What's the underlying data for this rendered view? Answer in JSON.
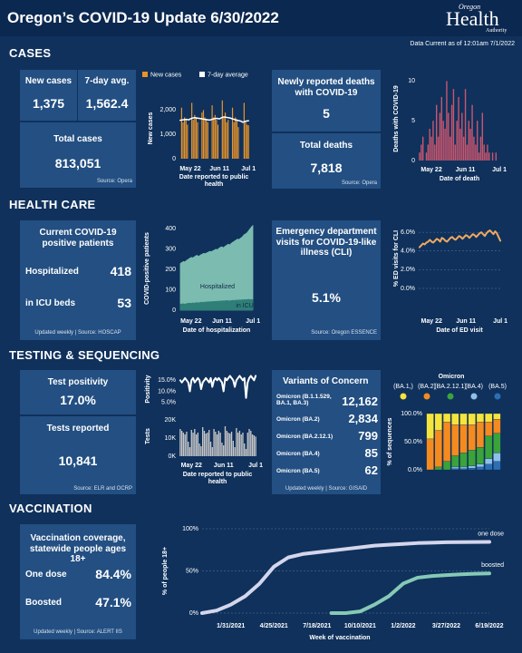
{
  "header": {
    "title": "Oregon’s COVID-19 Update 6/30/2022",
    "logo": {
      "top": "Oregon",
      "main": "Health",
      "bottom": "Authority"
    },
    "data_current": "Data Current as of 12:01am 7/1/2022"
  },
  "sections": [
    {
      "title": "CASES",
      "tiles": [
        {
          "label": "New cases",
          "value": "1,375"
        },
        {
          "label": "7-day avg.",
          "value": "1,562.4"
        },
        {
          "label": "Total cases",
          "value": "813,051",
          "source": "Source: Opera"
        },
        {
          "label": "Newly reported deaths with COVID-19",
          "value": "5"
        },
        {
          "label": "Total deaths",
          "value": "7,818",
          "source": "Source: Opera"
        }
      ]
    },
    {
      "title": "HEALTH CARE",
      "tiles": [
        {
          "label": "Current COVID-19 positive patients",
          "rows": [
            {
              "label": "Hospitalized",
              "value": "418"
            },
            {
              "label": "in ICU beds",
              "value": "53"
            }
          ],
          "source": "Updated weekly | Source: HOSCAP"
        },
        {
          "label": "Emergency department visits for COVID-19-like illness (CLI)",
          "value": "5.1%",
          "source": "Source: Oregon ESSENCE"
        }
      ]
    },
    {
      "title": "TESTING & SEQUENCING",
      "tiles": [
        {
          "label": "Test positivity",
          "value": "17.0%"
        },
        {
          "label": "Tests reported",
          "value": "10,841",
          "source": "Source: ELR and OCRP"
        }
      ],
      "variants": {
        "title": "Variants of Concern",
        "rows": [
          {
            "name": "Omicron (B.1.1.529, BA.1, BA.3)",
            "value": "12,162"
          },
          {
            "name": "Omicron (BA.2)",
            "value": "2,834"
          },
          {
            "name": "Omicron (BA.2.12.1)",
            "value": "799"
          },
          {
            "name": "Omicron (BA.4)",
            "value": "85"
          },
          {
            "name": "Omicron (BA.5)",
            "value": "62"
          }
        ],
        "source": "Updated weekly | Source: GISAID"
      }
    },
    {
      "title": "VACCINATION",
      "tiles": [
        {
          "label": "Vaccination coverage, statewide people ages 18+",
          "rows": [
            {
              "label": "One dose",
              "value": "84.4%"
            },
            {
              "label": "Boosted",
              "value": "47.1%"
            }
          ],
          "source": "Updated weekly | Source: ALERT IIS"
        }
      ]
    }
  ],
  "chart_data": [
    {
      "type": "combo",
      "legend": "top",
      "categories": [
        null,
        null,
        null,
        null,
        null,
        null,
        null,
        "May 22",
        null,
        null,
        null,
        null,
        null,
        null,
        null,
        null,
        null,
        null,
        null,
        null,
        null,
        null,
        null,
        null,
        null,
        null,
        null,
        "Jun 11",
        null,
        null,
        null,
        null,
        null,
        null,
        null,
        null,
        null,
        null,
        null,
        null,
        null,
        null,
        null,
        null,
        null,
        null,
        null,
        "Jul 1"
      ],
      "series": [
        {
          "name": "New cases",
          "type": "bar",
          "color": "#e8932a",
          "values": [
            0,
            2100,
            1500,
            1700,
            1600,
            1400,
            0,
            0,
            2300,
            1600,
            1800,
            1700,
            1500,
            0,
            0,
            1900,
            2000,
            1700,
            1600,
            1500,
            0,
            0,
            2200,
            1700,
            1800,
            1600,
            1400,
            0,
            0,
            2400,
            1700,
            1900,
            1500,
            1600,
            0,
            0,
            2100,
            1500,
            1700,
            1600,
            1300,
            0,
            0,
            0,
            2300,
            1500,
            1400,
            1375
          ]
        },
        {
          "name": "7-day average",
          "type": "line",
          "color": "#ffffff",
          "values": [
            1580,
            1590,
            1600,
            1610,
            1620,
            1610,
            1600,
            1640,
            1660,
            1680,
            1690,
            1680,
            1670,
            1660,
            1650,
            1640,
            1630,
            1620,
            1610,
            1600,
            1590,
            1600,
            1620,
            1640,
            1650,
            1660,
            1650,
            1640,
            1670,
            1700,
            1720,
            1710,
            1700,
            1690,
            1680,
            1660,
            1640,
            1620,
            1600,
            1590,
            1570,
            1560,
            1540,
            1500,
            1520,
            1540,
            1555,
            1562.4
          ]
        }
      ],
      "ylabel": "New cases",
      "xlabel": "Date reported to public health",
      "ylim": [
        0,
        2500
      ],
      "yticks": [
        0,
        {
          "value": 1000,
          "label": "1,000"
        },
        {
          "value": 2000,
          "label": "2,000"
        }
      ]
    },
    {
      "type": "bar",
      "categories": [
        null,
        null,
        null,
        null,
        null,
        null,
        null,
        "May 22",
        null,
        null,
        null,
        null,
        null,
        null,
        null,
        null,
        null,
        null,
        null,
        null,
        null,
        null,
        null,
        null,
        null,
        null,
        null,
        "Jun 11",
        null,
        null,
        null,
        null,
        null,
        null,
        null,
        null,
        null,
        null,
        null,
        null,
        null,
        null,
        null,
        null,
        null,
        null,
        null,
        "Jul 1"
      ],
      "values": [
        1,
        2,
        3,
        0,
        1,
        2,
        4,
        3,
        5,
        2,
        7,
        3,
        6,
        8,
        5,
        4,
        10,
        6,
        3,
        7,
        9,
        2,
        5,
        8,
        4,
        6,
        3,
        9,
        2,
        5,
        4,
        7,
        3,
        2,
        5,
        1,
        3,
        6,
        2,
        1,
        2,
        1,
        0,
        1,
        0,
        1,
        0,
        0
      ],
      "color": "#c9566e",
      "ylabel": "Deaths with COVID-19",
      "xlabel": "Date of death",
      "ylim": [
        0,
        10.5
      ],
      "yticks": [
        0,
        5,
        10
      ]
    },
    {
      "type": "area",
      "legend": "inline",
      "categories": [
        null,
        null,
        null,
        null,
        null,
        null,
        null,
        "May 22",
        null,
        null,
        null,
        null,
        null,
        null,
        null,
        null,
        null,
        null,
        null,
        null,
        null,
        null,
        null,
        null,
        null,
        null,
        null,
        "Jun 11",
        null,
        null,
        null,
        null,
        null,
        null,
        null,
        null,
        null,
        null,
        null,
        null,
        null,
        null,
        null,
        null,
        null,
        null,
        null,
        "Jul 1"
      ],
      "series": [
        {
          "name": "Hospitalized",
          "color": "#7cbcb0",
          "values": [
            230,
            235,
            240,
            238,
            245,
            250,
            255,
            260,
            258,
            262,
            268,
            270,
            265,
            272,
            275,
            280,
            278,
            282,
            285,
            290,
            288,
            292,
            296,
            300,
            298,
            305,
            310,
            312,
            308,
            315,
            320,
            325,
            322,
            330,
            335,
            340,
            345,
            350,
            348,
            355,
            360,
            370,
            375,
            380,
            390,
            400,
            410,
            418
          ]
        },
        {
          "name": "in ICU",
          "color": "#2f7f78",
          "values": [
            30,
            31,
            32,
            30,
            33,
            34,
            35,
            34,
            36,
            35,
            37,
            38,
            36,
            39,
            40,
            38,
            41,
            40,
            42,
            41,
            43,
            42,
            44,
            43,
            45,
            44,
            46,
            45,
            47,
            46,
            48,
            47,
            46,
            48,
            49,
            48,
            50,
            49,
            51,
            50,
            52,
            51,
            53,
            52,
            54,
            53,
            52,
            53
          ]
        }
      ],
      "ylabel": "COVID-positive patients",
      "xlabel": "Date of hospitalization",
      "ylim": [
        0,
        410
      ],
      "yticks": [
        0,
        100,
        200,
        300,
        400
      ]
    },
    {
      "type": "line",
      "grid": true,
      "categories": [
        null,
        null,
        null,
        null,
        null,
        null,
        null,
        "May 22",
        null,
        null,
        null,
        null,
        null,
        null,
        null,
        null,
        null,
        null,
        null,
        null,
        null,
        null,
        null,
        null,
        null,
        null,
        null,
        "Jun 11",
        null,
        null,
        null,
        null,
        null,
        null,
        null,
        null,
        null,
        null,
        null,
        null,
        null,
        null,
        null,
        null,
        null,
        null,
        null,
        "Jul 1"
      ],
      "values": [
        4.4,
        4.6,
        4.8,
        4.7,
        4.9,
        5.0,
        5.2,
        5.0,
        4.9,
        5.1,
        5.3,
        5.2,
        5.0,
        5.4,
        5.3,
        5.1,
        5.0,
        5.2,
        5.4,
        5.5,
        5.3,
        5.2,
        5.4,
        5.6,
        5.5,
        5.3,
        5.5,
        5.7,
        5.6,
        5.4,
        5.6,
        5.8,
        5.7,
        5.5,
        5.7,
        5.9,
        6.0,
        5.8,
        5.6,
        5.9,
        6.1,
        6.2,
        6.0,
        5.8,
        6.1,
        5.9,
        5.5,
        5.1
      ],
      "color": "#f0a860",
      "ylabel": "% ED visits for CLI",
      "xlabel": "Date of ED visit",
      "ylim": [
        0,
        6.4
      ],
      "yticks": [
        {
          "value": 0,
          "label": "0.0%"
        },
        {
          "value": 2,
          "label": "2.0%"
        },
        {
          "value": 4,
          "label": "4.0%"
        },
        {
          "value": 6,
          "label": "6.0%"
        }
      ]
    },
    {
      "type": "line",
      "values": [
        15,
        14,
        15,
        16,
        15,
        14,
        10,
        15,
        16,
        14,
        15,
        16,
        15,
        11,
        14,
        15,
        16,
        15,
        14,
        16,
        12,
        15,
        16,
        15,
        16,
        15,
        14,
        10,
        16,
        15,
        16,
        17,
        16,
        15,
        12,
        15,
        16,
        17,
        16,
        15,
        16,
        7,
        14,
        16,
        17,
        16,
        15,
        17
      ],
      "color": "#ffffff",
      "ylabel": "Positivity",
      "ylim": [
        4,
        18
      ],
      "yticks": [
        {
          "value": 5,
          "label": "5.0%"
        },
        {
          "value": 10,
          "label": "10.0%"
        },
        {
          "value": 15,
          "label": "15.0%"
        }
      ]
    },
    {
      "type": "bar",
      "categories": [
        null,
        null,
        null,
        null,
        null,
        null,
        null,
        "May 22",
        null,
        null,
        null,
        null,
        null,
        null,
        null,
        null,
        null,
        null,
        null,
        null,
        null,
        null,
        null,
        null,
        null,
        null,
        null,
        "Jun 11",
        null,
        null,
        null,
        null,
        null,
        null,
        null,
        null,
        null,
        null,
        null,
        null,
        null,
        null,
        null,
        null,
        null,
        null,
        null,
        "Jul 1"
      ],
      "values": [
        15000,
        14000,
        13000,
        12000,
        13500,
        8000,
        5000,
        14500,
        13000,
        15000,
        12000,
        13000,
        7000,
        5500,
        16000,
        14000,
        12500,
        13000,
        14500,
        8000,
        5000,
        15000,
        13500,
        12000,
        14000,
        13000,
        7500,
        6000,
        16500,
        14000,
        13000,
        12500,
        13500,
        8500,
        5000,
        15500,
        13000,
        14000,
        12000,
        13000,
        7000,
        4000,
        13000,
        15000,
        14000,
        12000,
        11500,
        10841
      ],
      "color": "#c8c8c8",
      "ylabel": "Tests",
      "xlabel": "Date reported to public health",
      "ylim": [
        0,
        22000
      ],
      "yticks": [
        {
          "value": 0,
          "label": "0K"
        },
        {
          "value": 10000,
          "label": "10K"
        },
        {
          "value": 20000,
          "label": "20K"
        }
      ]
    },
    {
      "type": "stacked_bar",
      "legend": "top",
      "legend_title": "Omicron",
      "series": [
        {
          "name": "(BA.1,)",
          "color": "#f5e43c",
          "values": [
            45,
            30,
            15,
            20,
            20,
            20,
            15,
            15,
            10
          ]
        },
        {
          "name": "(BA.2)",
          "color": "#f58a1f",
          "values": [
            55,
            65,
            70,
            55,
            50,
            45,
            45,
            25,
            25
          ]
        },
        {
          "name": "(BA.2.12.1)",
          "color": "#3aa33a",
          "values": [
            0,
            5,
            15,
            20,
            25,
            28,
            30,
            40,
            35
          ]
        },
        {
          "name": "(BA.4)",
          "color": "#8fc1e8",
          "values": [
            0,
            0,
            0,
            3,
            3,
            4,
            5,
            10,
            15
          ]
        },
        {
          "name": "(BA.5)",
          "color": "#2c6fb5",
          "values": [
            0,
            0,
            0,
            2,
            2,
            3,
            5,
            10,
            15
          ]
        }
      ],
      "ylabel": "% of sequences",
      "ylim": [
        0,
        100
      ],
      "yticks": [
        {
          "value": 0,
          "label": "0.0%"
        },
        {
          "value": 50,
          "label": "50.0%"
        },
        {
          "value": 100,
          "label": "100.0%"
        }
      ]
    },
    {
      "type": "line",
      "legend": "inline",
      "grid": true,
      "x": [
        "12/6/2020",
        "1/3/2021",
        "1/31/2021",
        "2/28/2021",
        "3/28/2021",
        "4/25/2021",
        "5/23/2021",
        "6/20/2021",
        "7/18/2021",
        "8/15/2021",
        "9/12/2021",
        "10/10/2021",
        "11/7/2021",
        "12/5/2021",
        "1/2/2022",
        "1/30/2022",
        "2/27/2022",
        "3/27/2022",
        "4/24/2022",
        "5/22/2022",
        "6/19/2022"
      ],
      "series": [
        {
          "name": "one dose",
          "color": "#d4d6ec",
          "values": [
            0,
            3,
            10,
            20,
            35,
            55,
            66,
            70,
            72,
            74,
            76,
            78,
            80,
            81,
            82,
            83,
            83.5,
            84,
            84.2,
            84.3,
            84.4
          ]
        },
        {
          "name": "boosted",
          "color": "#86c9b6",
          "values": [
            null,
            null,
            null,
            null,
            null,
            null,
            null,
            null,
            null,
            0,
            0,
            2,
            10,
            20,
            35,
            42,
            44,
            45,
            46,
            46.7,
            47.1
          ]
        }
      ],
      "xlim": [
        "12/6/2020",
        "6/19/2022"
      ],
      "xticks": [
        "1/31/2021",
        "4/25/2021",
        "7/18/2021",
        "10/10/2021",
        "1/2/2022",
        "3/27/2022",
        "6/19/2022"
      ],
      "ylabel": "% of people 18+",
      "xlabel": "Week of vaccination",
      "ylim": [
        0,
        100
      ],
      "yticks": [
        {
          "value": 0,
          "label": "0%"
        },
        {
          "value": 50,
          "label": "50%"
        },
        {
          "value": 100,
          "label": "100%"
        }
      ]
    }
  ]
}
